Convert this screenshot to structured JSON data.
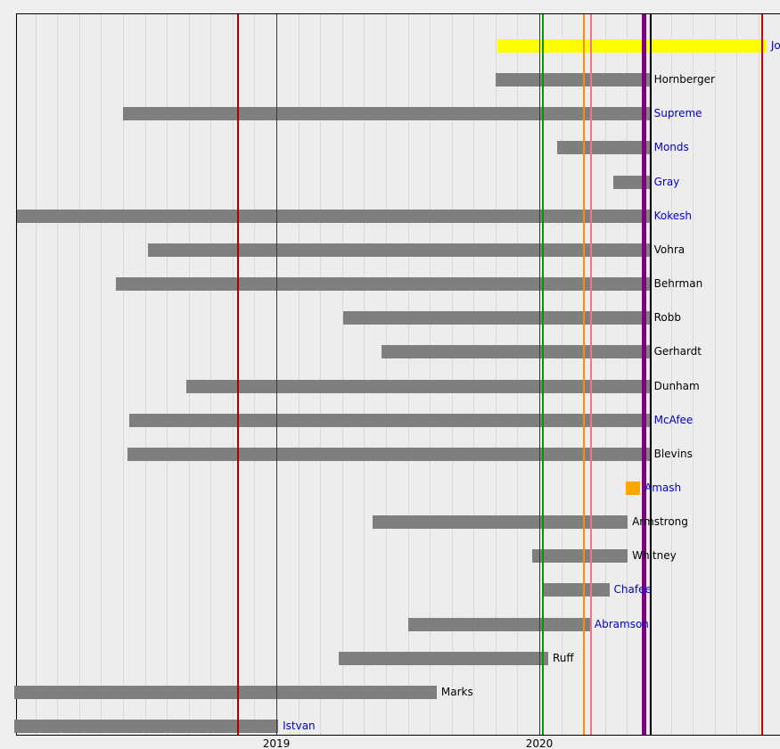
{
  "axis": {
    "ticks": [
      {
        "label": "2019",
        "t": 2019.0
      },
      {
        "label": "2020",
        "t": 2020.0
      }
    ]
  },
  "chart_data": {
    "type": "gantt",
    "description": "Timeline of candidacies: horizontal bars per candidate over 2018-2020 with vertical event lines",
    "time_domain": [
      2018.0,
      2020.92
    ],
    "rows": [
      {
        "label": "Jo",
        "link": true,
        "start": 2019.841,
        "end": 2020.864,
        "color": "#ffff00"
      },
      {
        "label": "Hornberger",
        "link": false,
        "start": 2019.834,
        "end": 2020.419,
        "color": "#7f7f7f"
      },
      {
        "label": "Supreme",
        "link": true,
        "start": 2018.417,
        "end": 2020.419,
        "color": "#7f7f7f"
      },
      {
        "label": "Monds",
        "link": true,
        "start": 2020.068,
        "end": 2020.419,
        "color": "#7f7f7f"
      },
      {
        "label": "Gray",
        "link": true,
        "start": 2020.281,
        "end": 2020.419,
        "color": "#7f7f7f"
      },
      {
        "label": "Kokesh",
        "link": true,
        "start": 2018.014,
        "end": 2020.419,
        "color": "#7f7f7f"
      },
      {
        "label": "Vohra",
        "link": false,
        "start": 2018.512,
        "end": 2020.419,
        "color": "#7f7f7f"
      },
      {
        "label": "Behrman",
        "link": false,
        "start": 2018.39,
        "end": 2020.419,
        "color": "#7f7f7f"
      },
      {
        "label": "Robb",
        "link": false,
        "start": 2019.254,
        "end": 2020.419,
        "color": "#7f7f7f"
      },
      {
        "label": "Gerhardt",
        "link": false,
        "start": 2019.4,
        "end": 2020.419,
        "color": "#7f7f7f"
      },
      {
        "label": "Dunham",
        "link": false,
        "start": 2018.658,
        "end": 2020.419,
        "color": "#7f7f7f"
      },
      {
        "label": "McAfee",
        "link": true,
        "start": 2018.441,
        "end": 2020.419,
        "color": "#7f7f7f"
      },
      {
        "label": "Blevins",
        "link": false,
        "start": 2018.434,
        "end": 2020.419,
        "color": "#7f7f7f"
      },
      {
        "label": "Amash",
        "link": true,
        "start": 2020.329,
        "end": 2020.383,
        "color": "#ffa500"
      },
      {
        "label": "Armstrong",
        "link": false,
        "start": 2019.366,
        "end": 2020.336,
        "color": "#7f7f7f"
      },
      {
        "label": "Whitney",
        "link": false,
        "start": 2019.973,
        "end": 2020.336,
        "color": "#7f7f7f"
      },
      {
        "label": "Chafee",
        "link": true,
        "start": 2020.017,
        "end": 2020.266,
        "color": "#7f7f7f"
      },
      {
        "label": "Abramson",
        "link": true,
        "start": 2019.502,
        "end": 2020.193,
        "color": "#7f7f7f"
      },
      {
        "label": "Ruff",
        "link": false,
        "start": 2019.237,
        "end": 2020.034,
        "color": "#7f7f7f"
      },
      {
        "label": "Marks",
        "link": false,
        "start": 2018.003,
        "end": 2019.61,
        "color": "#7f7f7f"
      },
      {
        "label": "Istvan",
        "link": true,
        "start": 2018.003,
        "end": 2019.007,
        "color": "#7f7f7f"
      }
    ],
    "vlines": [
      {
        "name": "line-2018-election",
        "t": 2018.855,
        "color": "#aa0000",
        "width": 2
      },
      {
        "name": "line-year-2019",
        "t": 2019.0,
        "color": "#3a3a3a",
        "width": 1
      },
      {
        "name": "line-year-2020",
        "t": 2020.0,
        "color": "#3a3a3a",
        "width": 1
      },
      {
        "name": "line-green",
        "t": 2020.012,
        "color": "#009900",
        "width": 2
      },
      {
        "name": "line-orange",
        "t": 2020.169,
        "color": "#ff8c00",
        "width": 2
      },
      {
        "name": "line-pink",
        "t": 2020.197,
        "color": "#ee7788",
        "width": 2
      },
      {
        "name": "line-purple-convention",
        "t": 2020.397,
        "color": "#800080",
        "width": 5
      },
      {
        "name": "line-black",
        "t": 2020.424,
        "color": "#000000",
        "width": 2
      },
      {
        "name": "line-2020-election",
        "t": 2020.847,
        "color": "#cc0000",
        "width": 2
      }
    ],
    "palette": {
      "bar_gray": "#7f7f7f",
      "winner_yellow": "#ffff00",
      "amash_orange": "#ffa500",
      "link_label": "#0000cc",
      "plain_label": "#000000",
      "gridline": "#d9d9d9",
      "plot_background": "#ededed"
    }
  }
}
